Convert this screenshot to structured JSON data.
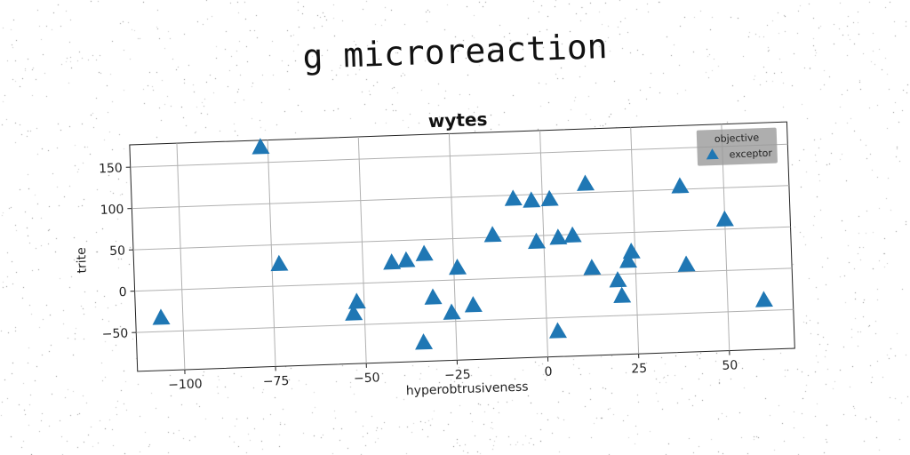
{
  "suptitle": "g microreaction",
  "chart_data": {
    "type": "scatter",
    "title": "wytes",
    "xlabel": "hyperobtrusiveness",
    "ylabel": "trite",
    "xlim": [
      -113,
      68
    ],
    "ylim": [
      -97,
      177
    ],
    "xticks": [
      -100,
      -75,
      -50,
      -25,
      0,
      25,
      50
    ],
    "xtick_labels": [
      "−100",
      "−75",
      "−50",
      "−25",
      "0",
      "25",
      "50"
    ],
    "yticks": [
      -50,
      0,
      50,
      100,
      150
    ],
    "ytick_labels": [
      "−50",
      "0",
      "50",
      "100",
      "150"
    ],
    "grid": true,
    "legend": {
      "title": "objective",
      "placement": "top-right",
      "entries": [
        "exceptor"
      ]
    },
    "series": [
      {
        "name": "exceptor",
        "color": "#1f77b4",
        "marker": "triangle",
        "points": [
          [
            -106,
            -33
          ],
          [
            -77,
            169
          ],
          [
            -73,
            27
          ],
          [
            -53,
            -36
          ],
          [
            -52,
            -22
          ],
          [
            -42,
            24
          ],
          [
            -38,
            26
          ],
          [
            -33,
            33
          ],
          [
            -31,
            -20
          ],
          [
            -34,
            -74
          ],
          [
            -26,
            -39
          ],
          [
            -24,
            15
          ],
          [
            -20,
            -31
          ],
          [
            -14,
            53
          ],
          [
            -8,
            96
          ],
          [
            -3,
            93
          ],
          [
            -2,
            43
          ],
          [
            2,
            94
          ],
          [
            4,
            47
          ],
          [
            8,
            49
          ],
          [
            3,
            -66
          ],
          [
            12,
            111
          ],
          [
            13,
            9
          ],
          [
            20,
            -7
          ],
          [
            21,
            -26
          ],
          [
            23,
            16
          ],
          [
            24,
            27
          ],
          [
            38,
            104
          ],
          [
            39,
            9
          ],
          [
            50,
            62
          ],
          [
            60,
            -37
          ]
        ]
      }
    ]
  }
}
